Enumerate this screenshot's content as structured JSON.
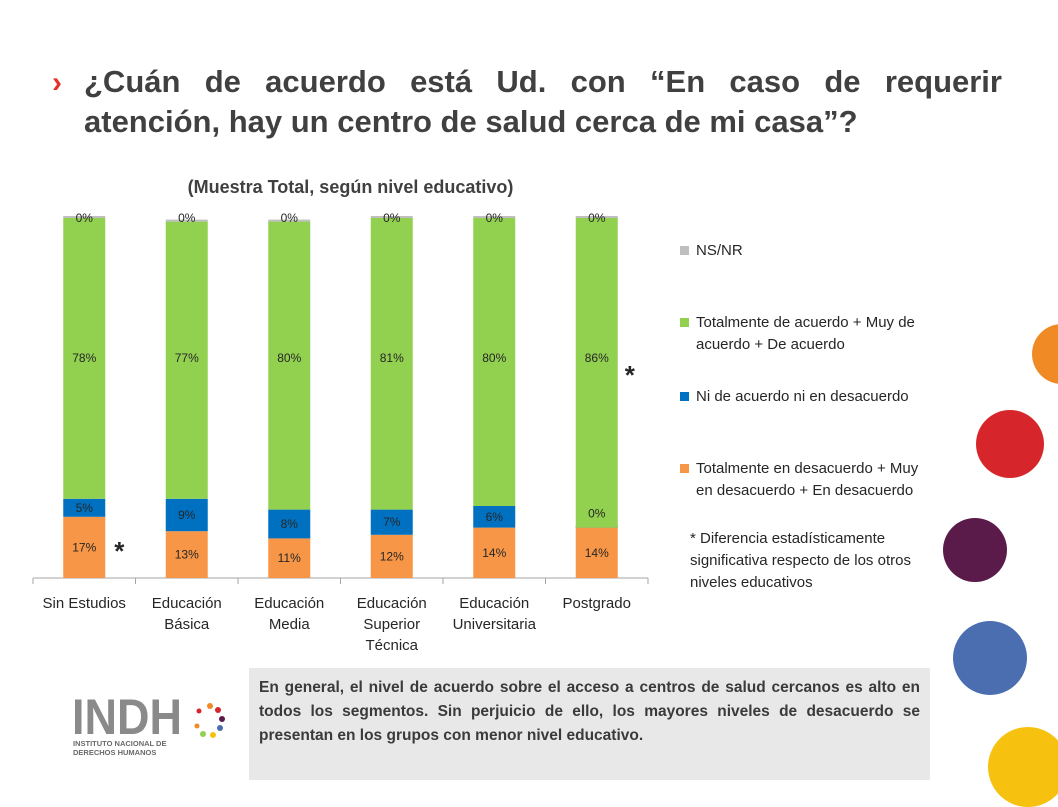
{
  "slide": {
    "title": "¿Cuán de acuerdo está Ud. con “En caso de requerir atención, hay un centro de salud cerca de mi casa”?",
    "summary": "En general, el nivel de acuerdo sobre el acceso a centros de salud cercanos es alto en todos los segmentos. Sin perjuicio de ello, los mayores niveles de desacuerdo se presentan en los grupos con menor nivel educativo.",
    "note": "* Diferencia estadísticamente significativa respecto de los otros niveles educativos",
    "logo": {
      "wordmark": "INDH",
      "line1": "INSTITUTO NACIONAL DE",
      "line2": "DERECHOS HUMANOS"
    },
    "colors": {
      "title": "#404040",
      "accent_chevron": "#e2332a",
      "deco_orange": "#f08a24",
      "deco_red": "#d7262b",
      "deco_purple": "#5a1a4a",
      "deco_blue": "#4a6eb0",
      "deco_yellow": "#f6c20f"
    }
  },
  "chart_data": {
    "type": "bar",
    "stacked": true,
    "title": "(Muestra Total, según nivel educativo)",
    "categories": [
      "Sin Estudios",
      "Educación Básica",
      "Educación Media",
      "Educación Superior Técnica",
      "Educación Universitaria",
      "Postgrado"
    ],
    "category_lines": [
      [
        "Sin Estudios"
      ],
      [
        "Educación",
        "Básica"
      ],
      [
        "Educación",
        "Media"
      ],
      [
        "Educación",
        "Superior",
        "Técnica"
      ],
      [
        "Educación",
        "Universitaria"
      ],
      [
        "Postgrado"
      ]
    ],
    "ylim": [
      0,
      100
    ],
    "legend_position": "right",
    "series": [
      {
        "name": "Totalmente en desacuerdo + Muy en desacuerdo + En desacuerdo",
        "legend_lines": [
          "Totalmente en desacuerdo + Muy",
          "en desacuerdo + En desacuerdo"
        ],
        "color": "#f79646",
        "values": [
          17,
          13,
          11,
          12,
          14,
          14
        ],
        "labels": [
          "17%",
          "13%",
          "11%",
          "12%",
          "14%",
          "14%"
        ]
      },
      {
        "name": "Ni de acuerdo ni en desacuerdo",
        "legend_lines": [
          "Ni de acuerdo ni en desacuerdo"
        ],
        "color": "#0070c0",
        "values": [
          5,
          9,
          8,
          7,
          6,
          0
        ],
        "labels": [
          "5%",
          "9%",
          "8%",
          "7%",
          "6%",
          "0%"
        ]
      },
      {
        "name": "Totalmente de acuerdo + Muy de acuerdo + De acuerdo",
        "legend_lines": [
          "Totalmente de acuerdo + Muy de",
          "acuerdo + De acuerdo"
        ],
        "color": "#92d050",
        "values": [
          78,
          77,
          80,
          81,
          80,
          86
        ],
        "labels": [
          "78%",
          "77%",
          "80%",
          "81%",
          "80%",
          "86%"
        ]
      },
      {
        "name": "NS/NR",
        "legend_lines": [
          "NS/NR"
        ],
        "color": "#bfbfbf",
        "values": [
          0,
          0,
          0,
          0,
          0,
          0
        ],
        "labels": [
          "0%",
          "0%",
          "0%",
          "0%",
          "0%",
          "0%"
        ]
      }
    ],
    "annotations": [
      {
        "text": "*",
        "category": "Sin Estudios"
      },
      {
        "text": "*",
        "category": "Postgrado"
      }
    ]
  }
}
